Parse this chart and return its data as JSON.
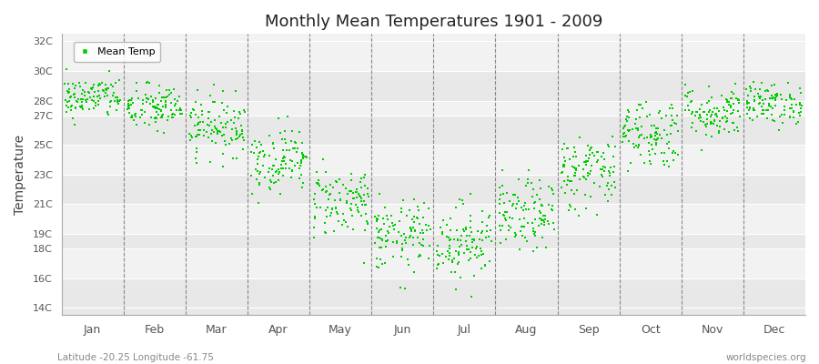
{
  "title": "Monthly Mean Temperatures 1901 - 2009",
  "ylabel": "Temperature",
  "subtitle_left": "Latitude -20.25 Longitude -61.75",
  "subtitle_right": "worldspecies.org",
  "ytick_vals": [
    14,
    16,
    18,
    19,
    21,
    23,
    25,
    27,
    28,
    30,
    32
  ],
  "ytick_labels": [
    "14C",
    "16C",
    "18C",
    "19C",
    "21C",
    "23C",
    "25C",
    "27C",
    "28C",
    "30C",
    "32C"
  ],
  "ylim": [
    13.5,
    32.5
  ],
  "months": [
    "Jan",
    "Feb",
    "Mar",
    "Apr",
    "May",
    "Jun",
    "Jul",
    "Aug",
    "Sep",
    "Oct",
    "Nov",
    "Dec"
  ],
  "marker_color": "#00CC00",
  "marker_size": 2.5,
  "background_color": "#ffffff",
  "band_colors": [
    "#e8e8e8",
    "#f2f2f2"
  ],
  "dashed_line_color": "#888888",
  "legend_label": "Mean Temp",
  "n_years": 109,
  "monthly_means": [
    28.2,
    27.5,
    26.3,
    24.0,
    21.2,
    18.8,
    18.5,
    20.2,
    23.2,
    25.8,
    27.2,
    27.8
  ],
  "monthly_stds": [
    0.7,
    0.8,
    1.0,
    1.1,
    1.2,
    1.2,
    1.3,
    1.2,
    1.3,
    1.2,
    0.9,
    0.7
  ]
}
